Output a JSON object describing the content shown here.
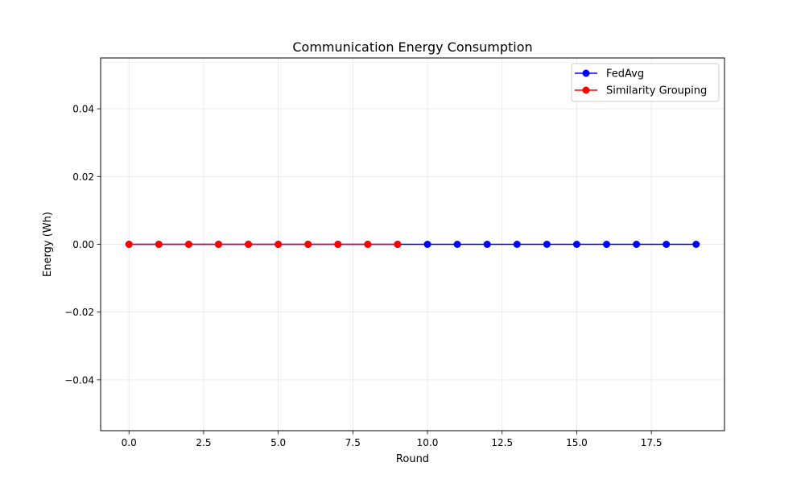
{
  "chart_data": {
    "type": "line",
    "title": "Communication Energy Consumption",
    "xlabel": "Round",
    "ylabel": "Energy (Wh)",
    "xlim": [
      -0.95,
      19.95
    ],
    "ylim": [
      -0.055,
      0.055
    ],
    "xticks": [
      0.0,
      2.5,
      5.0,
      7.5,
      10.0,
      12.5,
      15.0,
      17.5
    ],
    "xtick_labels": [
      "0.0",
      "2.5",
      "5.0",
      "7.5",
      "10.0",
      "12.5",
      "15.0",
      "17.5"
    ],
    "yticks": [
      -0.04,
      -0.02,
      0.0,
      0.02,
      0.04
    ],
    "ytick_labels": [
      "−0.04",
      "−0.02",
      "0.00",
      "0.02",
      "0.04"
    ],
    "grid": true,
    "legend_position": "top-right",
    "series": [
      {
        "name": "FedAvg",
        "color": "#0000ff",
        "marker": "circle",
        "x": [
          0,
          1,
          2,
          3,
          4,
          5,
          6,
          7,
          8,
          9,
          10,
          11,
          12,
          13,
          14,
          15,
          16,
          17,
          18,
          19
        ],
        "y": [
          0,
          0,
          0,
          0,
          0,
          0,
          0,
          0,
          0,
          0,
          0,
          0,
          0,
          0,
          0,
          0,
          0,
          0,
          0,
          0
        ]
      },
      {
        "name": "Similarity Grouping",
        "color": "#ff0000",
        "marker": "circle",
        "x": [
          0,
          1,
          2,
          3,
          4,
          5,
          6,
          7,
          8,
          9
        ],
        "y": [
          0,
          0,
          0,
          0,
          0,
          0,
          0,
          0,
          0,
          0
        ]
      }
    ]
  }
}
